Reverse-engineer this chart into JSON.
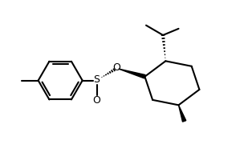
{
  "bg_color": "#ffffff",
  "line_color": "#000000",
  "line_width": 1.5,
  "figsize": [
    3.09,
    1.85
  ],
  "dpi": 100,
  "xlim": [
    0.0,
    9.5
  ],
  "ylim": [
    0.5,
    5.8
  ]
}
